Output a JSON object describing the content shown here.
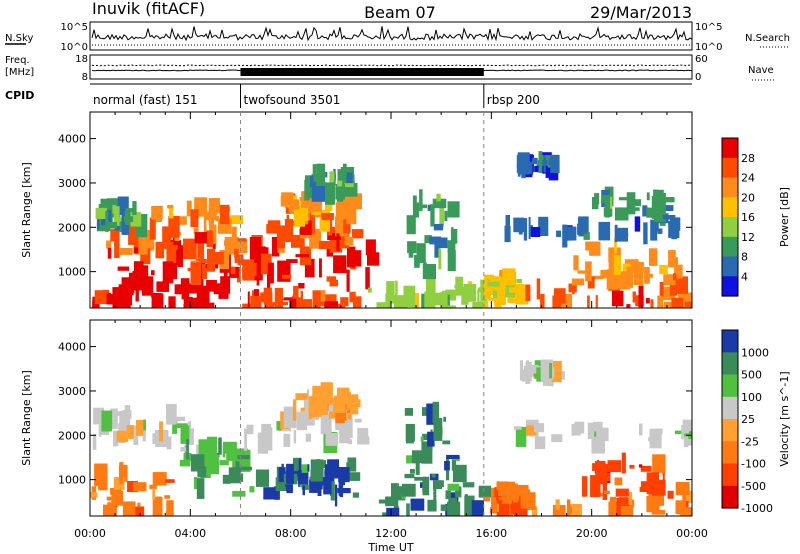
{
  "header": {
    "station": "Inuvik (fitACF)",
    "beam": "Beam 07",
    "date": "29/Mar/2013"
  },
  "summary_panels": {
    "nsky": {
      "label": "N.Sky",
      "right_label": "N.Search",
      "left_ticks": [
        "10^5",
        "10^0"
      ],
      "right_ticks": [
        "10^5",
        "10^0"
      ]
    },
    "freq": {
      "label_line1": "Freq.",
      "label_line2": "[MHz]",
      "right_label": "Nave",
      "left_ticks": [
        "18",
        "8"
      ],
      "right_ticks": [
        "60",
        "0"
      ]
    },
    "cpid": {
      "label": "CPID",
      "segments": [
        {
          "name": "normal (fast) 151",
          "start_hour": 0,
          "end_hour": 6
        },
        {
          "name": "twofsound 3501",
          "start_hour": 6,
          "end_hour": 15.7
        },
        {
          "name": "rbsp 200",
          "start_hour": 15.7,
          "end_hour": 24
        }
      ]
    }
  },
  "chart_data": [
    {
      "type": "heatmap",
      "ylabel": "Slant Range [km]",
      "xlabel": "Time UT",
      "xlim": [
        0,
        24
      ],
      "ylim": [
        180,
        4600
      ],
      "x_ticks": [
        "00:00",
        "04:00",
        "08:00",
        "12:00",
        "16:00",
        "20:00",
        "00:00"
      ],
      "y_ticks": [
        1000,
        2000,
        3000,
        4000
      ],
      "colorbar": {
        "label": "Power [dB]",
        "ticks": [
          "28",
          "24",
          "20",
          "16",
          "12",
          "8",
          "4"
        ],
        "colors": [
          "#e80000",
          "#ff4a00",
          "#ff8c1a",
          "#ffc000",
          "#90d040",
          "#3a9a5a",
          "#2a6ab0",
          "#1010e0"
        ]
      },
      "echo_regions": [
        {
          "t": [
            0.0,
            5.9
          ],
          "r": [
            180,
            500
          ],
          "level": 0
        },
        {
          "t": [
            0.3,
            4.0
          ],
          "r": [
            1300,
            2000
          ],
          "level": 1
        },
        {
          "t": [
            1.0,
            5.5
          ],
          "r": [
            600,
            1100
          ],
          "level": 0
        },
        {
          "t": [
            2.0,
            5.8
          ],
          "r": [
            1800,
            2500
          ],
          "level": 2
        },
        {
          "t": [
            0.2,
            2.0
          ],
          "r": [
            2000,
            2500
          ],
          "level": 5
        },
        {
          "t": [
            4.0,
            6.5
          ],
          "r": [
            900,
            1800
          ],
          "level": 1
        },
        {
          "t": [
            6.5,
            11.2
          ],
          "r": [
            500,
            1600
          ],
          "level": 0
        },
        {
          "t": [
            7.0,
            10.5
          ],
          "r": [
            1600,
            2100
          ],
          "level": 1
        },
        {
          "t": [
            7.5,
            10.8
          ],
          "r": [
            2100,
            2700
          ],
          "level": 2
        },
        {
          "t": [
            8.5,
            10.5
          ],
          "r": [
            2700,
            3200
          ],
          "level": 5
        },
        {
          "t": [
            6.0,
            11.0
          ],
          "r": [
            180,
            450
          ],
          "level": 1
        },
        {
          "t": [
            11.0,
            15.7
          ],
          "r": [
            180,
            700
          ],
          "level": 4
        },
        {
          "t": [
            12.5,
            14.5
          ],
          "r": [
            900,
            2800
          ],
          "level": 5
        },
        {
          "t": [
            15.7,
            17.0
          ],
          "r": [
            300,
            900
          ],
          "level": 3
        },
        {
          "t": [
            17.0,
            24.0
          ],
          "r": [
            180,
            700
          ],
          "level": 1
        },
        {
          "t": [
            19.0,
            23.5
          ],
          "r": [
            700,
            1600
          ],
          "level": 2
        },
        {
          "t": [
            16.5,
            24.0
          ],
          "r": [
            1800,
            2100
          ],
          "level": 6
        },
        {
          "t": [
            17.0,
            18.5
          ],
          "r": [
            3300,
            3500
          ],
          "level": 6
        },
        {
          "t": [
            20.0,
            23.0
          ],
          "r": [
            2200,
            2700
          ],
          "level": 5
        }
      ]
    },
    {
      "type": "heatmap",
      "ylabel": "Slant Range [km]",
      "xlabel": "Time UT",
      "xlim": [
        0,
        24
      ],
      "ylim": [
        180,
        4600
      ],
      "x_ticks": [
        "00:00",
        "04:00",
        "08:00",
        "12:00",
        "16:00",
        "20:00",
        "00:00"
      ],
      "y_ticks": [
        1000,
        2000,
        3000,
        4000
      ],
      "colorbar": {
        "label": "Velocity [m s^-1]",
        "ticks": [
          "1000",
          "500",
          "100",
          "25",
          "-25",
          "-100",
          "-500",
          "-1000"
        ],
        "colors": [
          "#1a3aa8",
          "#3a8a5a",
          "#50c040",
          "#c8c8c8",
          "#ffa030",
          "#ff7a10",
          "#ff4000",
          "#e00000"
        ]
      },
      "echo_regions": [
        {
          "t": [
            0.0,
            3.5
          ],
          "r": [
            180,
            1200
          ],
          "level": 5
        },
        {
          "t": [
            0.0,
            4.0
          ],
          "r": [
            1800,
            2500
          ],
          "level": 3
        },
        {
          "t": [
            3.5,
            6.0
          ],
          "r": [
            1200,
            1800
          ],
          "level": 2
        },
        {
          "t": [
            4.0,
            10.5
          ],
          "r": [
            600,
            1400
          ],
          "level": 1
        },
        {
          "t": [
            7.5,
            10.0
          ],
          "r": [
            600,
            1300
          ],
          "level": 0
        },
        {
          "t": [
            6.0,
            11.0
          ],
          "r": [
            1800,
            2500
          ],
          "level": 3
        },
        {
          "t": [
            8.0,
            10.5
          ],
          "r": [
            2500,
            3000
          ],
          "level": 4
        },
        {
          "t": [
            11.5,
            15.5
          ],
          "r": [
            180,
            900
          ],
          "level": 1
        },
        {
          "t": [
            12.5,
            14.5
          ],
          "r": [
            900,
            2600
          ],
          "level": 1
        },
        {
          "t": [
            15.7,
            17.0
          ],
          "r": [
            300,
            900
          ],
          "level": 5
        },
        {
          "t": [
            17.0,
            24.0
          ],
          "r": [
            180,
            700
          ],
          "level": 5
        },
        {
          "t": [
            19.5,
            23.5
          ],
          "r": [
            700,
            1400
          ],
          "level": 6
        },
        {
          "t": [
            16.5,
            24.0
          ],
          "r": [
            1800,
            2200
          ],
          "level": 3
        },
        {
          "t": [
            17.0,
            18.5
          ],
          "r": [
            3300,
            3500
          ],
          "level": 3
        }
      ]
    }
  ]
}
